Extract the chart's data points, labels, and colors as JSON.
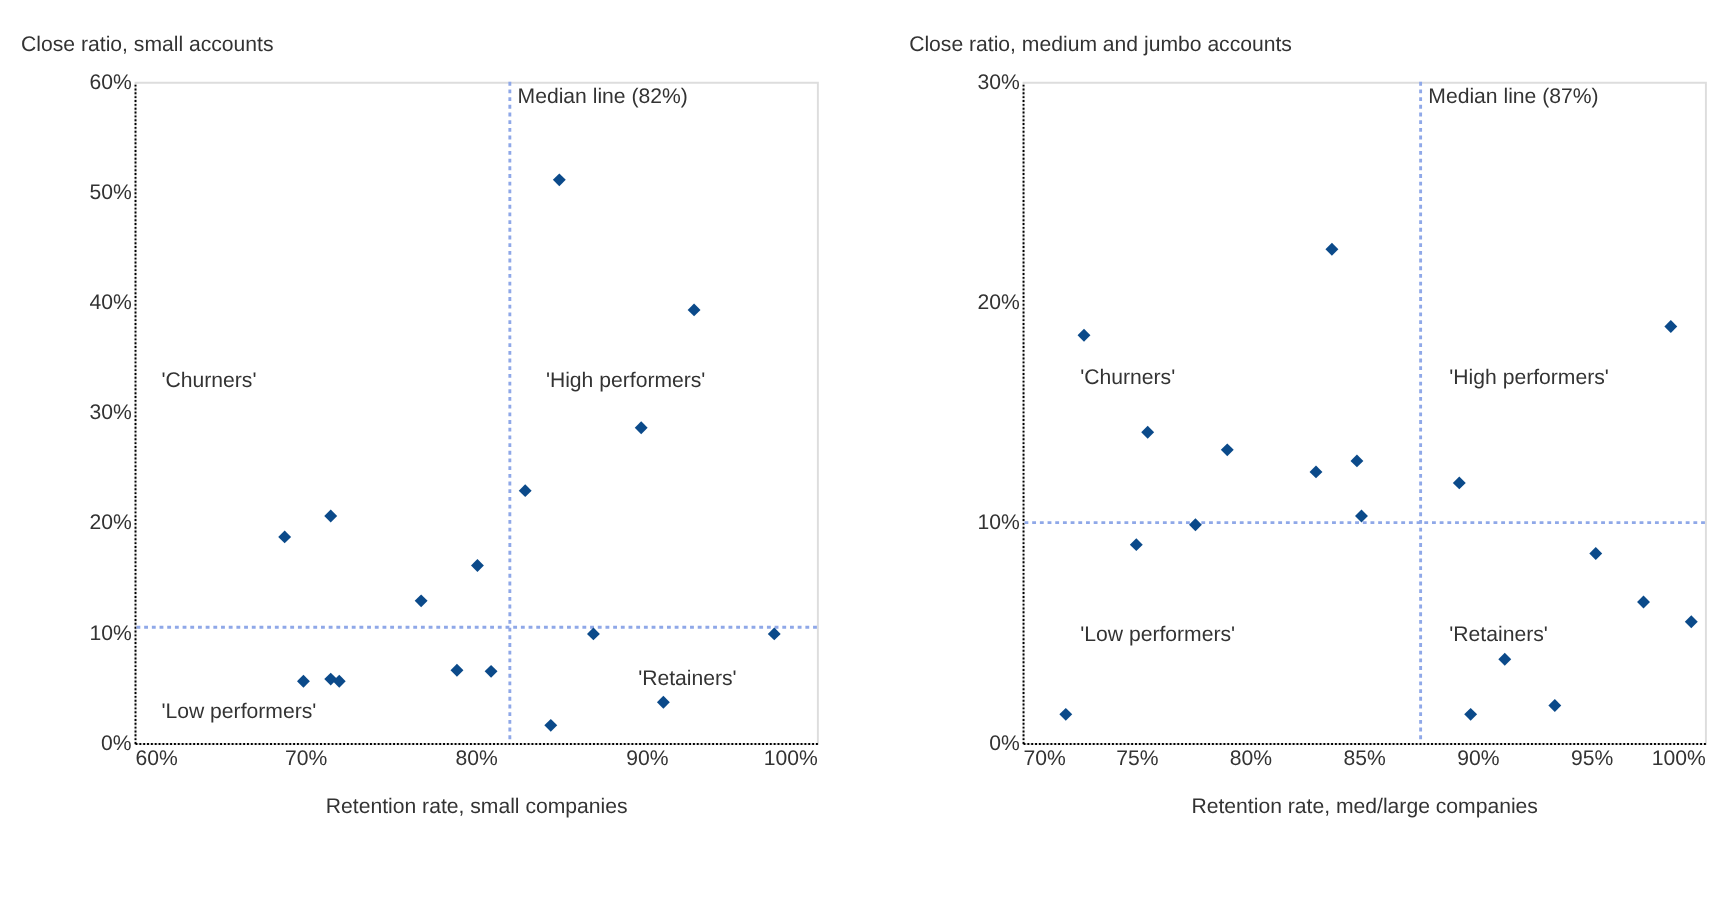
{
  "chart_data": [
    {
      "type": "scatter",
      "title": "Close ratio, small accounts",
      "xlabel": "Retention rate, small companies",
      "marker": "diamond",
      "grid": false,
      "xlim": [
        60,
        100
      ],
      "xticks": [
        {
          "value": 60,
          "label": "60%"
        },
        {
          "value": 70,
          "label": "70%"
        },
        {
          "value": 80,
          "label": "80%"
        },
        {
          "value": 90,
          "label": "90%"
        },
        {
          "value": 100,
          "label": "100%"
        }
      ],
      "ylim": [
        0,
        60
      ],
      "yticks": [
        {
          "value": 0,
          "label": "0%"
        },
        {
          "value": 10,
          "label": "10%"
        },
        {
          "value": 20,
          "label": "20%"
        },
        {
          "value": 30,
          "label": "30%"
        },
        {
          "value": 40,
          "label": "40%"
        },
        {
          "value": 50,
          "label": "50%"
        },
        {
          "value": 60,
          "label": "60%"
        }
      ],
      "x": [
        84.9,
        92.8,
        89.7,
        82.9,
        71.5,
        68.8,
        80.1,
        76.8,
        86.9,
        97.5,
        69.9,
        71.5,
        72.0,
        78.9,
        80.9,
        91.0,
        84.4
      ],
      "series": [
        {
          "color": "#0b4a8a",
          "values": [
            51.1,
            39.3,
            28.6,
            22.9,
            20.6,
            18.7,
            16.1,
            12.9,
            9.9,
            9.9,
            5.6,
            5.8,
            5.6,
            6.6,
            6.5,
            3.7,
            1.6
          ]
        }
      ],
      "ref_lines": [
        {
          "axis": "x",
          "value": 82,
          "label": "Median line (82%)",
          "color": "#8fa8e8",
          "line_style": "dotted"
        },
        {
          "axis": "y",
          "value": 10.5,
          "color": "#8fa8e8",
          "line_style": "dotted"
        }
      ],
      "annotations": [
        "'Churners'",
        "'High performers'",
        "'Low performers'",
        "'Retainers'"
      ]
    },
    {
      "type": "scatter",
      "title": "Close ratio, medium and jumbo accounts",
      "xlabel": "Retention rate, med/large companies",
      "marker": "diamond",
      "grid": false,
      "xlim": [
        70,
        100
      ],
      "xticks": [
        {
          "value": 70,
          "label": "70%"
        },
        {
          "value": 75,
          "label": "75%"
        },
        {
          "value": 80,
          "label": "80%"
        },
        {
          "value": 85,
          "label": "85%"
        },
        {
          "value": 90,
          "label": "90%"
        },
        {
          "value": 95,
          "label": "95%"
        },
        {
          "value": 100,
          "label": "100%"
        }
      ],
      "ylim": [
        0,
        30
      ],
      "yticks": [
        {
          "value": 0,
          "label": "0%"
        },
        {
          "value": 10,
          "label": "10%"
        },
        {
          "value": 20,
          "label": "20%"
        },
        {
          "value": 30,
          "label": "30%"
        }
      ],
      "x": [
        83.6,
        98.5,
        72.7,
        75.5,
        79.0,
        82.9,
        84.7,
        84.9,
        89.2,
        75.0,
        77.6,
        95.2,
        97.3,
        99.4,
        91.2,
        89.7,
        93.4,
        71.9
      ],
      "series": [
        {
          "color": "#0b4a8a",
          "values": [
            22.4,
            18.9,
            18.5,
            14.1,
            13.3,
            12.3,
            12.8,
            10.3,
            11.8,
            9.0,
            9.9,
            8.6,
            6.4,
            5.5,
            3.8,
            1.3,
            1.7,
            1.3
          ]
        }
      ],
      "ref_lines": [
        {
          "axis": "x",
          "value": 87.5,
          "label": "Median line (87%)",
          "color": "#8fa8e8",
          "line_style": "dotted"
        },
        {
          "axis": "y",
          "value": 10,
          "color": "#8fa8e8",
          "line_style": "dotted"
        }
      ],
      "annotations": [
        "'Churners'",
        "'High performers'",
        "'Low performers'",
        "'Retainers'"
      ]
    }
  ]
}
